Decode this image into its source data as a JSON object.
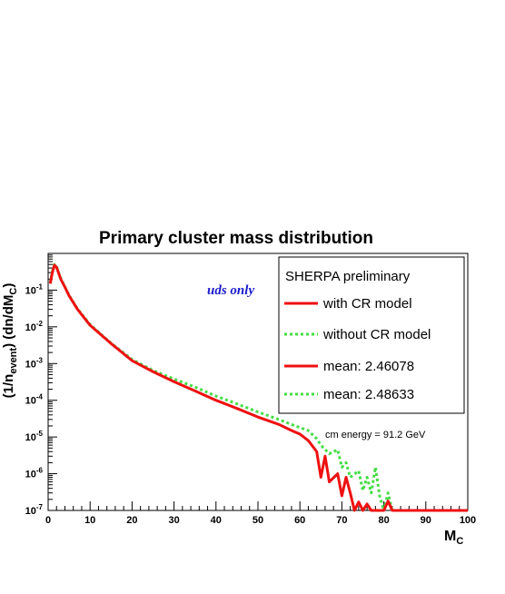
{
  "chart_data": {
    "type": "line",
    "title": "Primary cluster mass distribution",
    "ylabel": "(1/n_event) (dn/dM_C)",
    "xlabel": "M_C",
    "xlim": [
      0,
      100
    ],
    "ylim": [
      1e-07,
      1
    ],
    "yscale": "log",
    "xticks": [
      0,
      10,
      20,
      30,
      40,
      50,
      60,
      70,
      80,
      90,
      100
    ],
    "yticks": [
      {
        "sup": "-1",
        "value": 0.1
      },
      {
        "sup": "-2",
        "value": 0.01
      },
      {
        "sup": "-3",
        "value": 0.001
      },
      {
        "sup": "-4",
        "value": 0.0001
      },
      {
        "sup": "-5",
        "value": 1e-05
      },
      {
        "sup": "-6",
        "value": 1e-06
      },
      {
        "sup": "-7",
        "value": 1e-07
      }
    ],
    "annotation_uds": "uds only",
    "annotation_energy": "cm energy = 91.2 GeV",
    "legend": {
      "header": "SHERPA preliminary",
      "entries": [
        {
          "label": "with CR model",
          "style": "solid",
          "color": "#ee1111"
        },
        {
          "label": "without CR model",
          "style": "dotted",
          "color": "#44dd44"
        },
        {
          "label": "mean: 2.46078",
          "style": "solid",
          "color": "#ee1111"
        },
        {
          "label": "mean: 2.48633",
          "style": "dotted",
          "color": "#44dd44"
        }
      ]
    },
    "series": [
      {
        "name": "with CR model",
        "color": "#ee1111",
        "points": [
          [
            0.5,
            0.15
          ],
          [
            1,
            0.3
          ],
          [
            1.5,
            0.48
          ],
          [
            2,
            0.42
          ],
          [
            3,
            0.2
          ],
          [
            4,
            0.12
          ],
          [
            5,
            0.07
          ],
          [
            7,
            0.03
          ],
          [
            10,
            0.011
          ],
          [
            15,
            0.0035
          ],
          [
            20,
            0.0012
          ],
          [
            25,
            0.0006
          ],
          [
            30,
            0.00032
          ],
          [
            35,
            0.00018
          ],
          [
            40,
            0.0001
          ],
          [
            45,
            6e-05
          ],
          [
            50,
            3.5e-05
          ],
          [
            55,
            2.2e-05
          ],
          [
            58,
            1.5e-05
          ],
          [
            60,
            1.2e-05
          ],
          [
            62,
            8e-06
          ],
          [
            64,
            4e-06
          ],
          [
            65,
            8e-07
          ],
          [
            66,
            3e-06
          ],
          [
            67,
            6e-07
          ],
          [
            69,
            1e-06
          ],
          [
            70,
            2.5e-07
          ],
          [
            71,
            8e-07
          ],
          [
            72,
            3e-07
          ],
          [
            73,
            1e-07
          ],
          [
            74,
            1.7e-07
          ],
          [
            75,
            1e-07
          ],
          [
            76,
            1.5e-07
          ],
          [
            77,
            1e-07
          ],
          [
            80,
            1e-07
          ],
          [
            81,
            1.8e-07
          ],
          [
            82,
            1e-07
          ],
          [
            100,
            1e-07
          ]
        ]
      },
      {
        "name": "without CR model",
        "color": "#44dd44",
        "points": [
          [
            0.5,
            0.16
          ],
          [
            1,
            0.32
          ],
          [
            1.5,
            0.5
          ],
          [
            2,
            0.44
          ],
          [
            3,
            0.21
          ],
          [
            4,
            0.125
          ],
          [
            5,
            0.072
          ],
          [
            7,
            0.031
          ],
          [
            10,
            0.0115
          ],
          [
            15,
            0.0036
          ],
          [
            20,
            0.0013
          ],
          [
            25,
            0.00065
          ],
          [
            30,
            0.00038
          ],
          [
            35,
            0.00023
          ],
          [
            40,
            0.00013
          ],
          [
            45,
            8e-05
          ],
          [
            50,
            4.8e-05
          ],
          [
            55,
            3e-05
          ],
          [
            58,
            2.2e-05
          ],
          [
            60,
            1.8e-05
          ],
          [
            62,
            1.5e-05
          ],
          [
            64,
            9e-06
          ],
          [
            65,
            6e-06
          ],
          [
            67,
            3.5e-06
          ],
          [
            69,
            4.5e-06
          ],
          [
            70,
            1.5e-06
          ],
          [
            71,
            2e-06
          ],
          [
            72,
            8e-07
          ],
          [
            74,
            1.2e-06
          ],
          [
            75,
            3.5e-07
          ],
          [
            76,
            8e-07
          ],
          [
            77,
            3e-07
          ],
          [
            78,
            1.5e-06
          ],
          [
            79,
            2.5e-07
          ],
          [
            80,
            1e-07
          ],
          [
            81,
            3e-07
          ],
          [
            82,
            1e-07
          ],
          [
            100,
            1e-07
          ]
        ]
      }
    ]
  }
}
